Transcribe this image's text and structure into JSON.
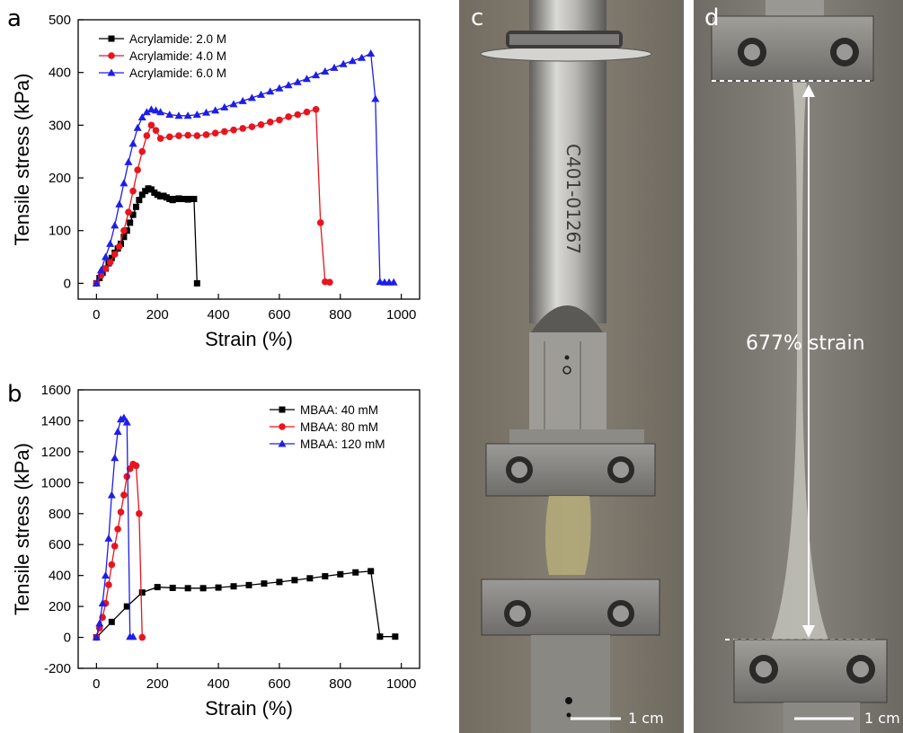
{
  "panels": {
    "a": "a",
    "b": "b",
    "c": "c",
    "d": "d"
  },
  "photo_c": {
    "scale_label": "1 cm",
    "engraving": "C401-01267"
  },
  "photo_d": {
    "scale_label": "1 cm",
    "strain_label": "677% strain"
  },
  "colors": {
    "black": "#000000",
    "red": "#e8141e",
    "blue": "#1e1ee8"
  },
  "chart_data": [
    {
      "type": "line",
      "title": "",
      "xlabel": "Strain (%)",
      "ylabel": "Tensile stress (kPa)",
      "xlim": [
        -60,
        1060
      ],
      "ylim": [
        -30,
        500
      ],
      "xticks": [
        0,
        200,
        400,
        600,
        800,
        1000
      ],
      "yticks": [
        0,
        100,
        200,
        300,
        400,
        500
      ],
      "legend_position": "top-left",
      "series": [
        {
          "name": "Acrylamide: 2.0 M",
          "color": "#000000",
          "marker": "square",
          "x": [
            0,
            10,
            20,
            30,
            40,
            50,
            60,
            70,
            80,
            90,
            100,
            110,
            120,
            130,
            140,
            150,
            160,
            170,
            180,
            190,
            200,
            210,
            220,
            230,
            240,
            250,
            260,
            270,
            280,
            290,
            300,
            310,
            320,
            330
          ],
          "y": [
            0,
            10,
            20,
            28,
            38,
            48,
            58,
            66,
            75,
            88,
            100,
            115,
            130,
            145,
            158,
            168,
            175,
            180,
            178,
            172,
            168,
            165,
            166,
            163,
            160,
            158,
            160,
            161,
            160,
            160,
            159,
            160,
            160,
            0
          ]
        },
        {
          "name": "Acrylamide: 4.0 M",
          "color": "#e8141e",
          "marker": "circle",
          "x": [
            0,
            15,
            30,
            45,
            60,
            75,
            90,
            105,
            120,
            135,
            150,
            165,
            180,
            195,
            210,
            240,
            270,
            300,
            330,
            360,
            390,
            420,
            450,
            480,
            510,
            540,
            570,
            600,
            630,
            660,
            690,
            720,
            735,
            750,
            765
          ],
          "y": [
            0,
            15,
            28,
            40,
            55,
            70,
            100,
            135,
            175,
            215,
            250,
            280,
            300,
            290,
            275,
            278,
            280,
            281,
            280,
            282,
            285,
            288,
            291,
            294,
            297,
            301,
            306,
            310,
            316,
            320,
            325,
            330,
            115,
            3,
            2
          ],
          "breaks": []
        },
        {
          "name": "Acrylamide: 6.0 M",
          "color": "#1e1ee8",
          "marker": "triangle",
          "x": [
            0,
            15,
            30,
            45,
            60,
            75,
            90,
            105,
            120,
            135,
            150,
            165,
            180,
            195,
            210,
            240,
            270,
            300,
            330,
            360,
            390,
            420,
            450,
            480,
            510,
            540,
            570,
            600,
            630,
            660,
            690,
            720,
            750,
            780,
            810,
            840,
            870,
            900,
            915,
            930,
            945,
            960,
            975
          ],
          "y": [
            0,
            25,
            50,
            75,
            110,
            150,
            190,
            230,
            265,
            295,
            315,
            325,
            330,
            328,
            325,
            320,
            318,
            318,
            320,
            324,
            328,
            334,
            340,
            346,
            352,
            358,
            364,
            370,
            376,
            382,
            388,
            395,
            402,
            409,
            416,
            422,
            428,
            436,
            350,
            3,
            2,
            2,
            2
          ]
        }
      ]
    },
    {
      "type": "line",
      "title": "",
      "xlabel": "Strain (%)",
      "ylabel": "Tensile stress (kPa)",
      "xlim": [
        -60,
        1060
      ],
      "ylim": [
        -200,
        1600
      ],
      "xticks": [
        0,
        200,
        400,
        600,
        800,
        1000
      ],
      "yticks": [
        -200,
        0,
        200,
        400,
        600,
        800,
        1000,
        1200,
        1400,
        1600
      ],
      "legend_position": "top-right",
      "series": [
        {
          "name": "MBAA: 40 mM",
          "color": "#000000",
          "marker": "square",
          "x": [
            0,
            50,
            100,
            150,
            200,
            250,
            300,
            350,
            400,
            450,
            500,
            550,
            600,
            650,
            700,
            750,
            800,
            850,
            900,
            930,
            980
          ],
          "y": [
            0,
            100,
            200,
            290,
            325,
            320,
            318,
            318,
            322,
            330,
            338,
            348,
            358,
            370,
            382,
            395,
            408,
            420,
            428,
            5,
            5
          ]
        },
        {
          "name": "MBAA: 80 mM",
          "color": "#e8141e",
          "marker": "circle",
          "x": [
            0,
            10,
            20,
            30,
            40,
            50,
            60,
            70,
            80,
            90,
            100,
            110,
            120,
            130,
            140,
            150
          ],
          "y": [
            0,
            60,
            130,
            220,
            340,
            470,
            590,
            700,
            810,
            920,
            1040,
            1090,
            1120,
            1110,
            800,
            0
          ]
        },
        {
          "name": "MBAA: 120 mM",
          "color": "#1e1ee8",
          "marker": "triangle",
          "x": [
            0,
            10,
            20,
            30,
            40,
            50,
            60,
            70,
            80,
            90,
            100,
            110,
            120
          ],
          "y": [
            0,
            90,
            220,
            400,
            640,
            920,
            1160,
            1330,
            1410,
            1420,
            1390,
            5,
            5
          ]
        }
      ]
    }
  ]
}
